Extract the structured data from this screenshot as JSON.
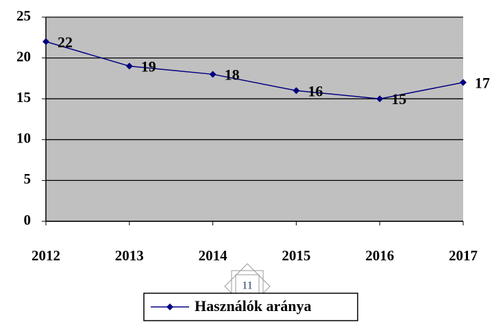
{
  "chart_data": {
    "type": "line",
    "categories": [
      "2012",
      "2013",
      "2014",
      "2015",
      "2016",
      "2017"
    ],
    "series": [
      {
        "name": "Használók aránya",
        "color": "#000080",
        "values": [
          22,
          19,
          18,
          16,
          15,
          17
        ]
      }
    ],
    "ylim": [
      0,
      25
    ],
    "yticks": [
      0,
      5,
      10,
      15,
      20,
      25
    ],
    "grid": true,
    "legend": "bottom"
  },
  "page_number": "11"
}
